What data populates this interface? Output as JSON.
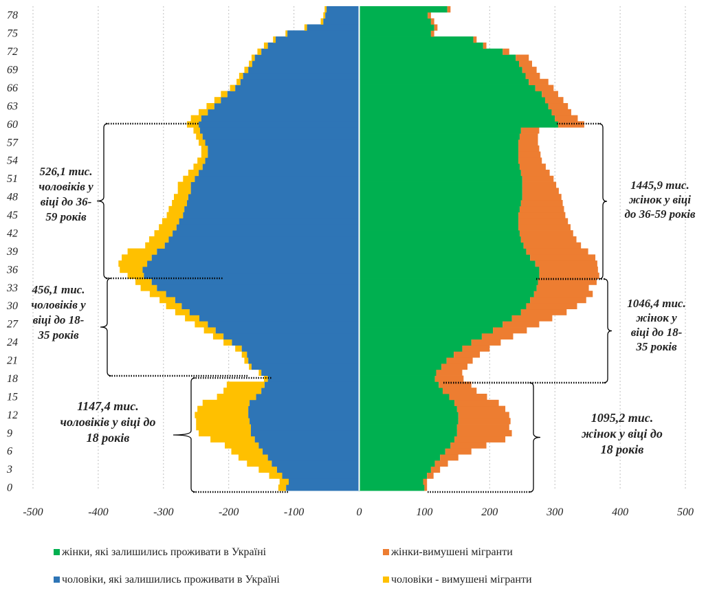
{
  "chart_data": {
    "type": "bar",
    "orientation": "horizontal",
    "stacked": true,
    "xlim": [
      -500,
      500
    ],
    "x_ticks": [
      -500,
      -400,
      -300,
      -200,
      -100,
      0,
      100,
      200,
      300,
      400,
      500
    ],
    "x_tick_labels": [
      "-500",
      "-400",
      "-300",
      "-200",
      "-100",
      "0",
      "100",
      "200",
      "300",
      "400",
      "500"
    ],
    "age_range": [
      0,
      79
    ],
    "y_tick_labels": [
      "0",
      "3",
      "6",
      "9",
      "12",
      "15",
      "18",
      "21",
      "24",
      "27",
      "30",
      "33",
      "36",
      "39",
      "42",
      "45",
      "48",
      "51",
      "54",
      "57",
      "60",
      "63",
      "66",
      "69",
      "72",
      "75",
      "78"
    ],
    "grid": "vertical",
    "legend_position": "bottom",
    "legend": [
      {
        "label": "жінки, які залишились проживати в Україні",
        "color": "#00b050"
      },
      {
        "label": "жінки-вимушені мігранти",
        "color": "#ed7d31"
      },
      {
        "label": "чоловіки, які залишились проживати в Україні",
        "color": "#2e75b6"
      },
      {
        "label": "чоловіки - вимушені мігранти",
        "color": "#ffc000"
      }
    ],
    "series": [
      {
        "name": "чоловіки, які залишились проживати в Україні",
        "side": "left",
        "color": "#2e75b6",
        "values": [
          -112,
          -108,
          -118,
          -126,
          -134,
          -140,
          -148,
          -154,
          -160,
          -166,
          -166,
          -168,
          -170,
          -170,
          -168,
          -158,
          -150,
          -145,
          -140,
          -150,
          -165,
          -170,
          -172,
          -180,
          -195,
          -208,
          -220,
          -232,
          -245,
          -260,
          -272,
          -282,
          -296,
          -310,
          -318,
          -330,
          -332,
          -325,
          -318,
          -310,
          -298,
          -292,
          -286,
          -280,
          -276,
          -270,
          -268,
          -264,
          -262,
          -258,
          -258,
          -252,
          -246,
          -240,
          -236,
          -232,
          -232,
          -236,
          -240,
          -244,
          -246,
          -242,
          -232,
          -222,
          -212,
          -202,
          -190,
          -182,
          -178,
          -170,
          -164,
          -160,
          -150,
          -140,
          -128,
          -110,
          -80,
          -55,
          -52,
          -50
        ]
      },
      {
        "name": "чоловіки - вимушені мігранти",
        "side": "left",
        "color": "#ffc000",
        "values": [
          -12,
          -14,
          -20,
          -28,
          -38,
          -45,
          -48,
          -52,
          -68,
          -80,
          -84,
          -82,
          -82,
          -78,
          -72,
          -60,
          -58,
          -58,
          -6,
          -4,
          -4,
          -6,
          -8,
          -10,
          -13,
          -16,
          -18,
          -20,
          -22,
          -22,
          -24,
          -24,
          -25,
          -25,
          -25,
          -25,
          -35,
          -44,
          -46,
          -45,
          -30,
          -30,
          -28,
          -27,
          -26,
          -25,
          -24,
          -23,
          -22,
          -20,
          -20,
          -18,
          -16,
          -14,
          -12,
          -10,
          -10,
          -10,
          -10,
          -10,
          -18,
          -16,
          -14,
          -12,
          -10,
          -10,
          -8,
          -6,
          -6,
          -6,
          -5,
          -5,
          -6,
          -6,
          -4,
          -3,
          -4,
          -4,
          -3,
          -3
        ]
      },
      {
        "name": "жінки, які залишились проживати в Україні",
        "side": "right",
        "color": "#00b050",
        "values": [
          100,
          98,
          104,
          110,
          116,
          124,
          132,
          140,
          146,
          150,
          150,
          152,
          152,
          150,
          146,
          138,
          128,
          122,
          116,
          118,
          126,
          134,
          145,
          158,
          172,
          188,
          205,
          220,
          234,
          248,
          256,
          262,
          268,
          272,
          274,
          276,
          276,
          270,
          262,
          256,
          252,
          248,
          246,
          244,
          244,
          244,
          246,
          248,
          250,
          250,
          250,
          250,
          248,
          246,
          244,
          244,
          244,
          244,
          246,
          248,
          305,
          300,
          295,
          290,
          285,
          280,
          270,
          260,
          255,
          250,
          245,
          240,
          220,
          190,
          175,
          110,
          115,
          110,
          105,
          135
        ]
      },
      {
        "name": "жінки-вимушені мігранти",
        "side": "right",
        "color": "#ed7d31",
        "values": [
          4,
          6,
          10,
          14,
          20,
          28,
          40,
          55,
          78,
          84,
          80,
          80,
          78,
          74,
          68,
          58,
          52,
          50,
          44,
          40,
          40,
          40,
          40,
          42,
          45,
          48,
          52,
          56,
          62,
          70,
          78,
          86,
          90,
          80,
          90,
          92,
          90,
          95,
          100,
          95,
          88,
          85,
          82,
          80,
          76,
          72,
          68,
          64,
          60,
          56,
          52,
          48,
          44,
          40,
          36,
          34,
          32,
          30,
          28,
          28,
          40,
          35,
          30,
          30,
          28,
          25,
          28,
          30,
          22,
          22,
          20,
          20,
          10,
          5,
          5,
          5,
          5,
          5,
          5,
          5
        ]
      }
    ],
    "annotations": [
      {
        "lines": [
          "526,1 тис.",
          "чоловіків у",
          "віці до 36-",
          "59 років"
        ]
      },
      {
        "lines": [
          "456,1 тис.",
          "чоловіків у",
          "віці до 18-",
          "35 років"
        ]
      },
      {
        "lines": [
          "1147,4 тис.",
          "чоловіків у віці до",
          "18 років"
        ]
      },
      {
        "lines": [
          "1445,9 тис.",
          "жінок у віці",
          "до 36-59 років"
        ]
      },
      {
        "lines": [
          "1046,4 тис.",
          "жінок у",
          "віці до 18-",
          "35 років"
        ]
      },
      {
        "lines": [
          "1095,2 тис.",
          "жінок у віці до",
          "18 років"
        ]
      }
    ]
  }
}
